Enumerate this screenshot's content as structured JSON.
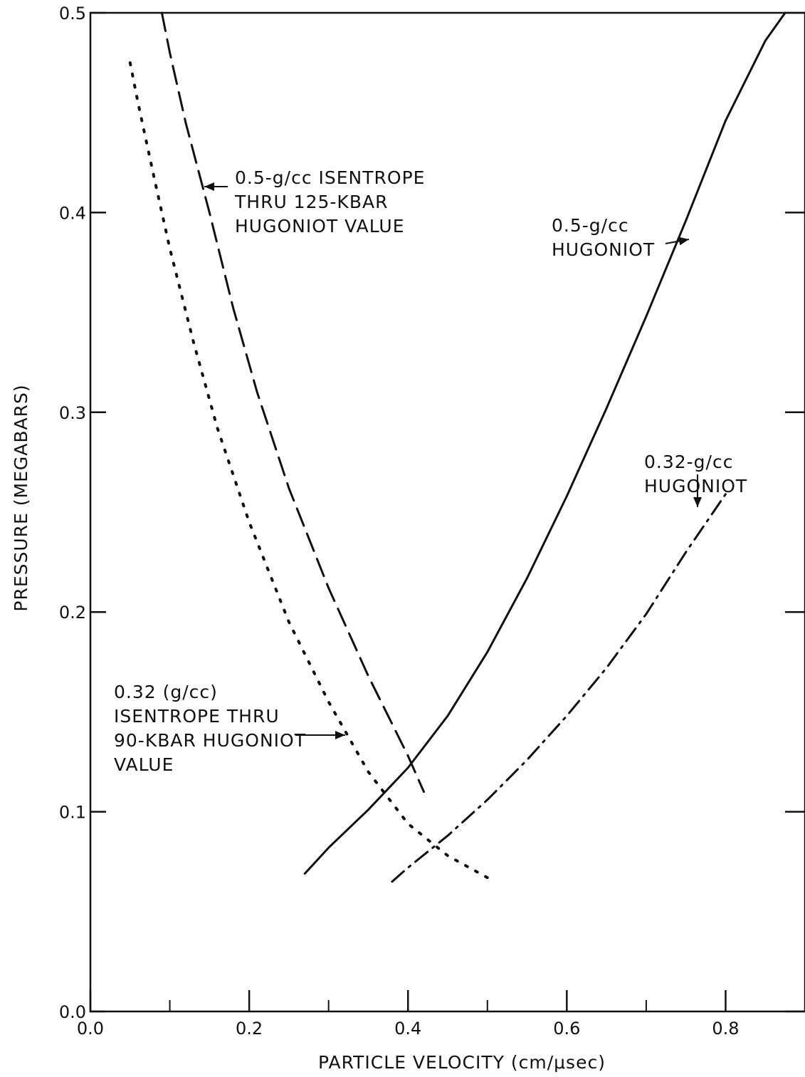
{
  "chart_data": {
    "type": "line",
    "title": "",
    "xlabel": "PARTICLE VELOCITY (cm/μsec)",
    "ylabel": "PRESSURE (MEGABARS)",
    "xlim": [
      0.0,
      0.9
    ],
    "ylim": [
      0.0,
      0.5
    ],
    "x_ticks": [
      "0.0",
      "0.2",
      "0.4",
      "0.6",
      "0.8"
    ],
    "y_ticks": [
      "0.0",
      "0.1",
      "0.2",
      "0.3",
      "0.4",
      "0.5"
    ],
    "grid": false,
    "series": [
      {
        "name": "0.5-g/cc HUGONIOT",
        "style": "solid",
        "x": [
          0.27,
          0.3,
          0.35,
          0.4,
          0.45,
          0.5,
          0.55,
          0.6,
          0.65,
          0.7,
          0.75,
          0.8,
          0.85,
          0.875
        ],
        "y": [
          0.069,
          0.082,
          0.101,
          0.122,
          0.148,
          0.18,
          0.217,
          0.258,
          0.302,
          0.348,
          0.396,
          0.446,
          0.486,
          0.5
        ]
      },
      {
        "name": "0.32-g/cc HUGONIOT",
        "style": "dashdot",
        "x": [
          0.38,
          0.4,
          0.45,
          0.5,
          0.55,
          0.6,
          0.65,
          0.7,
          0.75,
          0.8
        ],
        "y": [
          0.065,
          0.072,
          0.088,
          0.106,
          0.126,
          0.148,
          0.172,
          0.199,
          0.23,
          0.259
        ]
      },
      {
        "name": "0.5-g/cc ISENTROPE THRU 125-KBAR HUGONIOT VALUE",
        "style": "dashed",
        "x": [
          0.09,
          0.1,
          0.12,
          0.15,
          0.18,
          0.21,
          0.25,
          0.3,
          0.35,
          0.4,
          0.42
        ],
        "y": [
          0.5,
          0.48,
          0.445,
          0.4,
          0.352,
          0.31,
          0.262,
          0.212,
          0.168,
          0.128,
          0.11
        ]
      },
      {
        "name": "0.32 (g/cc) ISENTROPE THRU 90-KBAR HUGONIOT VALUE",
        "style": "dotted",
        "x": [
          0.05,
          0.06,
          0.08,
          0.1,
          0.13,
          0.16,
          0.2,
          0.25,
          0.3,
          0.35,
          0.4,
          0.45,
          0.5
        ],
        "y": [
          0.475,
          0.455,
          0.418,
          0.382,
          0.335,
          0.292,
          0.245,
          0.195,
          0.155,
          0.12,
          0.094,
          0.078,
          0.067
        ]
      }
    ],
    "annotations": [
      {
        "id": "iso-05",
        "lines": [
          "0.5-g/cc ISENTROPE",
          "THRU 125-KBAR",
          "HUGONIOT VALUE"
        ],
        "at": [
          0.155,
          0.418
        ],
        "arrow_to": [
          0.145,
          0.415
        ]
      },
      {
        "id": "hug-05",
        "lines": [
          "0.5-g/cc",
          "HUGONIOT"
        ],
        "at": [
          0.77,
          0.385
        ],
        "arrow_to": [
          0.76,
          0.388
        ]
      },
      {
        "id": "hug-032",
        "lines": [
          "0.32-g/cc",
          "HUGONIOT"
        ],
        "at": [
          0.77,
          0.27
        ],
        "arrow_to": [
          0.77,
          0.246
        ]
      },
      {
        "id": "iso-032",
        "lines": [
          "0.32 (g/cc)",
          "ISENTROPE THRU",
          "90-KBAR HUGONIOT",
          "VALUE"
        ],
        "at": [
          0.245,
          0.15
        ],
        "arrow_to": [
          0.33,
          0.15
        ]
      }
    ]
  }
}
